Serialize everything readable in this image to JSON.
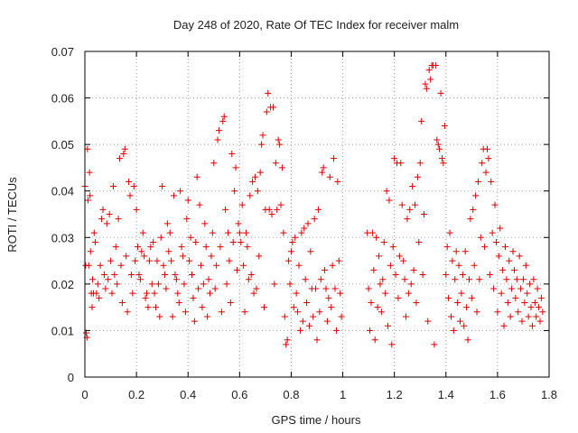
{
  "chart_data": {
    "type": "scatter",
    "title": "Day 248 of 2020, Rate Of TEC Index for receiver malm",
    "xlabel": "GPS time / hours",
    "ylabel": "ROTI / TECUs",
    "xlim": [
      0,
      1.8
    ],
    "ylim": [
      0,
      0.07
    ],
    "x_ticks": [
      "0",
      "0.2",
      "0.4",
      "0.6",
      "0.8",
      "1",
      "1.2",
      "1.4",
      "1.6",
      "1.8"
    ],
    "y_ticks": [
      "0",
      "0.01",
      "0.02",
      "0.03",
      "0.04",
      "0.05",
      "0.06",
      "0.07"
    ],
    "grid": true,
    "marker": "+",
    "color": "#dd0000",
    "points": [
      [
        0.0,
        0.041
      ],
      [
        0.003,
        0.024
      ],
      [
        0.005,
        0.0095
      ],
      [
        0.008,
        0.0085
      ],
      [
        0.01,
        0.049
      ],
      [
        0.012,
        0.038
      ],
      [
        0.015,
        0.024
      ],
      [
        0.018,
        0.044
      ],
      [
        0.02,
        0.039
      ],
      [
        0.022,
        0.027
      ],
      [
        0.025,
        0.018
      ],
      [
        0.028,
        0.015
      ],
      [
        0.03,
        0.021
      ],
      [
        0.033,
        0.018
      ],
      [
        0.036,
        0.031
      ],
      [
        0.04,
        0.029
      ],
      [
        0.045,
        0.018
      ],
      [
        0.05,
        0.02
      ],
      [
        0.055,
        0.017
      ],
      [
        0.06,
        0.024
      ],
      [
        0.065,
        0.034
      ],
      [
        0.07,
        0.036
      ],
      [
        0.075,
        0.022
      ],
      [
        0.08,
        0.019
      ],
      [
        0.085,
        0.033
      ],
      [
        0.09,
        0.021
      ],
      [
        0.095,
        0.035
      ],
      [
        0.1,
        0.025
      ],
      [
        0.105,
        0.018
      ],
      [
        0.11,
        0.041
      ],
      [
        0.115,
        0.022
      ],
      [
        0.12,
        0.028
      ],
      [
        0.125,
        0.02
      ],
      [
        0.13,
        0.034
      ],
      [
        0.135,
        0.047
      ],
      [
        0.14,
        0.024
      ],
      [
        0.145,
        0.016
      ],
      [
        0.15,
        0.048
      ],
      [
        0.155,
        0.049
      ],
      [
        0.16,
        0.026
      ],
      [
        0.165,
        0.014
      ],
      [
        0.17,
        0.042
      ],
      [
        0.175,
        0.039
      ],
      [
        0.18,
        0.022
      ],
      [
        0.185,
        0.018
      ],
      [
        0.19,
        0.041
      ],
      [
        0.195,
        0.025
      ],
      [
        0.2,
        0.036
      ],
      [
        0.205,
        0.028
      ],
      [
        0.21,
        0.022
      ],
      [
        0.215,
        0.021
      ],
      [
        0.22,
        0.027
      ],
      [
        0.225,
        0.031
      ],
      [
        0.23,
        0.026
      ],
      [
        0.235,
        0.017
      ],
      [
        0.24,
        0.018
      ],
      [
        0.245,
        0.015
      ],
      [
        0.25,
        0.025
      ],
      [
        0.255,
        0.028
      ],
      [
        0.26,
        0.02
      ],
      [
        0.265,
        0.029
      ],
      [
        0.27,
        0.018
      ],
      [
        0.275,
        0.015
      ],
      [
        0.28,
        0.025
      ],
      [
        0.285,
        0.02
      ],
      [
        0.29,
        0.013
      ],
      [
        0.295,
        0.03
      ],
      [
        0.3,
        0.041
      ],
      [
        0.305,
        0.024
      ],
      [
        0.31,
        0.022
      ],
      [
        0.315,
        0.019
      ],
      [
        0.32,
        0.033
      ],
      [
        0.325,
        0.027
      ],
      [
        0.33,
        0.031
      ],
      [
        0.335,
        0.025
      ],
      [
        0.34,
        0.013
      ],
      [
        0.345,
        0.039
      ],
      [
        0.35,
        0.022
      ],
      [
        0.355,
        0.021
      ],
      [
        0.36,
        0.018
      ],
      [
        0.365,
        0.016
      ],
      [
        0.37,
        0.04
      ],
      [
        0.375,
        0.028
      ],
      [
        0.38,
        0.026
      ],
      [
        0.385,
        0.02
      ],
      [
        0.39,
        0.014
      ],
      [
        0.395,
        0.034
      ],
      [
        0.4,
        0.038
      ],
      [
        0.405,
        0.025
      ],
      [
        0.41,
        0.03
      ],
      [
        0.415,
        0.022
      ],
      [
        0.42,
        0.017
      ],
      [
        0.425,
        0.012
      ],
      [
        0.43,
        0.029
      ],
      [
        0.435,
        0.043
      ],
      [
        0.44,
        0.019
      ],
      [
        0.445,
        0.037
      ],
      [
        0.45,
        0.024
      ],
      [
        0.455,
        0.015
      ],
      [
        0.46,
        0.02
      ],
      [
        0.465,
        0.033
      ],
      [
        0.47,
        0.028
      ],
      [
        0.475,
        0.013
      ],
      [
        0.48,
        0.021
      ],
      [
        0.485,
        0.018
      ],
      [
        0.49,
        0.026
      ],
      [
        0.495,
        0.031
      ],
      [
        0.5,
        0.046
      ],
      [
        0.505,
        0.019
      ],
      [
        0.51,
        0.024
      ],
      [
        0.515,
        0.051
      ],
      [
        0.52,
        0.053
      ],
      [
        0.525,
        0.028
      ],
      [
        0.53,
        0.014
      ],
      [
        0.535,
        0.055
      ],
      [
        0.54,
        0.056
      ],
      [
        0.545,
        0.036
      ],
      [
        0.55,
        0.02
      ],
      [
        0.555,
        0.031
      ],
      [
        0.56,
        0.025
      ],
      [
        0.565,
        0.016
      ],
      [
        0.57,
        0.048
      ],
      [
        0.575,
        0.029
      ],
      [
        0.58,
        0.04
      ],
      [
        0.585,
        0.045
      ],
      [
        0.59,
        0.023
      ],
      [
        0.595,
        0.033
      ],
      [
        0.6,
        0.031
      ],
      [
        0.605,
        0.029
      ],
      [
        0.61,
        0.037
      ],
      [
        0.615,
        0.024
      ],
      [
        0.62,
        0.014
      ],
      [
        0.625,
        0.031
      ],
      [
        0.63,
        0.028
      ],
      [
        0.635,
        0.021
      ],
      [
        0.64,
        0.039
      ],
      [
        0.645,
        0.022
      ],
      [
        0.65,
        0.042
      ],
      [
        0.655,
        0.018
      ],
      [
        0.66,
        0.043
      ],
      [
        0.665,
        0.019
      ],
      [
        0.67,
        0.04
      ],
      [
        0.675,
        0.026
      ],
      [
        0.68,
        0.044
      ],
      [
        0.685,
        0.05
      ],
      [
        0.69,
        0.052
      ],
      [
        0.695,
        0.015
      ],
      [
        0.7,
        0.036
      ],
      [
        0.705,
        0.057
      ],
      [
        0.71,
        0.061
      ],
      [
        0.715,
        0.036
      ],
      [
        0.72,
        0.058
      ],
      [
        0.725,
        0.035
      ],
      [
        0.73,
        0.058
      ],
      [
        0.735,
        0.02
      ],
      [
        0.74,
        0.046
      ],
      [
        0.745,
        0.036
      ],
      [
        0.75,
        0.051
      ],
      [
        0.755,
        0.05
      ],
      [
        0.76,
        0.037
      ],
      [
        0.765,
        0.045
      ],
      [
        0.77,
        0.031
      ],
      [
        0.775,
        0.013
      ],
      [
        0.78,
        0.007
      ],
      [
        0.785,
        0.008
      ],
      [
        0.79,
        0.025
      ],
      [
        0.795,
        0.02
      ],
      [
        0.8,
        0.027
      ],
      [
        0.805,
        0.029
      ],
      [
        0.81,
        0.015
      ],
      [
        0.815,
        0.03
      ],
      [
        0.82,
        0.018
      ],
      [
        0.825,
        0.014
      ],
      [
        0.83,
        0.024
      ],
      [
        0.835,
        0.01
      ],
      [
        0.84,
        0.031
      ],
      [
        0.845,
        0.012
      ],
      [
        0.85,
        0.032
      ],
      [
        0.855,
        0.021
      ],
      [
        0.86,
        0.016
      ],
      [
        0.865,
        0.033
      ],
      [
        0.87,
        0.011
      ],
      [
        0.875,
        0.027
      ],
      [
        0.88,
        0.019
      ],
      [
        0.885,
        0.013
      ],
      [
        0.89,
        0.034
      ],
      [
        0.895,
        0.019
      ],
      [
        0.9,
        0.008
      ],
      [
        0.905,
        0.036
      ],
      [
        0.91,
        0.014
      ],
      [
        0.915,
        0.021
      ],
      [
        0.92,
        0.044
      ],
      [
        0.925,
        0.045
      ],
      [
        0.93,
        0.023
      ],
      [
        0.935,
        0.019
      ],
      [
        0.94,
        0.012
      ],
      [
        0.945,
        0.017
      ],
      [
        0.95,
        0.043
      ],
      [
        0.955,
        0.015
      ],
      [
        0.96,
        0.024
      ],
      [
        0.965,
        0.047
      ],
      [
        0.97,
        0.019
      ],
      [
        0.975,
        0.01
      ],
      [
        0.98,
        0.042
      ],
      [
        0.985,
        0.025
      ],
      [
        0.99,
        0.018
      ],
      [
        0.995,
        0.013
      ],
      [
        1.095,
        0.031
      ],
      [
        1.1,
        0.019
      ],
      [
        1.105,
        0.01
      ],
      [
        1.11,
        0.016
      ],
      [
        1.115,
        0.031
      ],
      [
        1.12,
        0.023
      ],
      [
        1.125,
        0.008
      ],
      [
        1.13,
        0.03
      ],
      [
        1.135,
        0.015
      ],
      [
        1.14,
        0.026
      ],
      [
        1.145,
        0.02
      ],
      [
        1.15,
        0.014
      ],
      [
        1.155,
        0.021
      ],
      [
        1.16,
        0.029
      ],
      [
        1.165,
        0.018
      ],
      [
        1.17,
        0.04
      ],
      [
        1.175,
        0.011
      ],
      [
        1.18,
        0.038
      ],
      [
        1.185,
        0.024
      ],
      [
        1.19,
        0.007
      ],
      [
        1.195,
        0.028
      ],
      [
        1.2,
        0.047
      ],
      [
        1.205,
        0.022
      ],
      [
        1.21,
        0.046
      ],
      [
        1.215,
        0.017
      ],
      [
        1.22,
        0.026
      ],
      [
        1.225,
        0.046
      ],
      [
        1.23,
        0.037
      ],
      [
        1.235,
        0.025
      ],
      [
        1.24,
        0.021
      ],
      [
        1.245,
        0.013
      ],
      [
        1.25,
        0.034
      ],
      [
        1.255,
        0.018
      ],
      [
        1.26,
        0.036
      ],
      [
        1.265,
        0.02
      ],
      [
        1.27,
        0.041
      ],
      [
        1.275,
        0.023
      ],
      [
        1.28,
        0.037
      ],
      [
        1.285,
        0.016
      ],
      [
        1.29,
        0.043
      ],
      [
        1.295,
        0.029
      ],
      [
        1.3,
        0.046
      ],
      [
        1.305,
        0.055
      ],
      [
        1.31,
        0.022
      ],
      [
        1.315,
        0.035
      ],
      [
        1.32,
        0.063
      ],
      [
        1.325,
        0.062
      ],
      [
        1.33,
        0.012
      ],
      [
        1.335,
        0.066
      ],
      [
        1.34,
        0.064
      ],
      [
        1.345,
        0.067
      ],
      [
        1.35,
        0.067
      ],
      [
        1.355,
        0.007
      ],
      [
        1.36,
        0.067
      ],
      [
        1.365,
        0.051
      ],
      [
        1.37,
        0.05
      ],
      [
        1.375,
        0.049
      ],
      [
        1.38,
        0.061
      ],
      [
        1.385,
        0.047
      ],
      [
        1.39,
        0.046
      ],
      [
        1.395,
        0.054
      ],
      [
        1.4,
        0.022
      ],
      [
        1.405,
        0.028
      ],
      [
        1.41,
        0.017
      ],
      [
        1.415,
        0.031
      ],
      [
        1.42,
        0.013
      ],
      [
        1.425,
        0.025
      ],
      [
        1.43,
        0.01
      ],
      [
        1.435,
        0.021
      ],
      [
        1.44,
        0.027
      ],
      [
        1.445,
        0.016
      ],
      [
        1.45,
        0.024
      ],
      [
        1.455,
        0.012
      ],
      [
        1.46,
        0.018
      ],
      [
        1.465,
        0.022
      ],
      [
        1.47,
        0.011
      ],
      [
        1.475,
        0.027
      ],
      [
        1.48,
        0.015
      ],
      [
        1.485,
        0.008
      ],
      [
        1.49,
        0.021
      ],
      [
        1.495,
        0.034
      ],
      [
        1.5,
        0.017
      ],
      [
        1.505,
        0.036
      ],
      [
        1.51,
        0.024
      ],
      [
        1.515,
        0.039
      ],
      [
        1.52,
        0.014
      ],
      [
        1.525,
        0.042
      ],
      [
        1.53,
        0.021
      ],
      [
        1.535,
        0.03
      ],
      [
        1.54,
        0.046
      ],
      [
        1.545,
        0.049
      ],
      [
        1.55,
        0.028
      ],
      [
        1.555,
        0.044
      ],
      [
        1.56,
        0.049
      ],
      [
        1.565,
        0.047
      ],
      [
        1.57,
        0.022
      ],
      [
        1.575,
        0.042
      ],
      [
        1.58,
        0.031
      ],
      [
        1.585,
        0.019
      ],
      [
        1.59,
        0.037
      ],
      [
        1.595,
        0.029
      ],
      [
        1.6,
        0.014
      ],
      [
        1.605,
        0.026
      ],
      [
        1.61,
        0.032
      ],
      [
        1.615,
        0.018
      ],
      [
        1.62,
        0.023
      ],
      [
        1.625,
        0.011
      ],
      [
        1.63,
        0.028
      ],
      [
        1.635,
        0.021
      ],
      [
        1.64,
        0.016
      ],
      [
        1.645,
        0.025
      ],
      [
        1.65,
        0.013
      ],
      [
        1.655,
        0.019
      ],
      [
        1.66,
        0.027
      ],
      [
        1.665,
        0.023
      ],
      [
        1.67,
        0.017
      ],
      [
        1.675,
        0.021
      ],
      [
        1.68,
        0.014
      ],
      [
        1.685,
        0.026
      ],
      [
        1.69,
        0.019
      ],
      [
        1.695,
        0.012
      ],
      [
        1.7,
        0.021
      ],
      [
        1.705,
        0.016
      ],
      [
        1.71,
        0.024
      ],
      [
        1.715,
        0.018
      ],
      [
        1.72,
        0.013
      ],
      [
        1.725,
        0.02
      ],
      [
        1.73,
        0.015
      ],
      [
        1.735,
        0.011
      ],
      [
        1.74,
        0.021
      ],
      [
        1.745,
        0.016
      ],
      [
        1.75,
        0.013
      ],
      [
        1.755,
        0.019
      ],
      [
        1.76,
        0.015
      ],
      [
        1.765,
        0.012
      ],
      [
        1.77,
        0.017
      ],
      [
        1.775,
        0.014
      ]
    ]
  }
}
